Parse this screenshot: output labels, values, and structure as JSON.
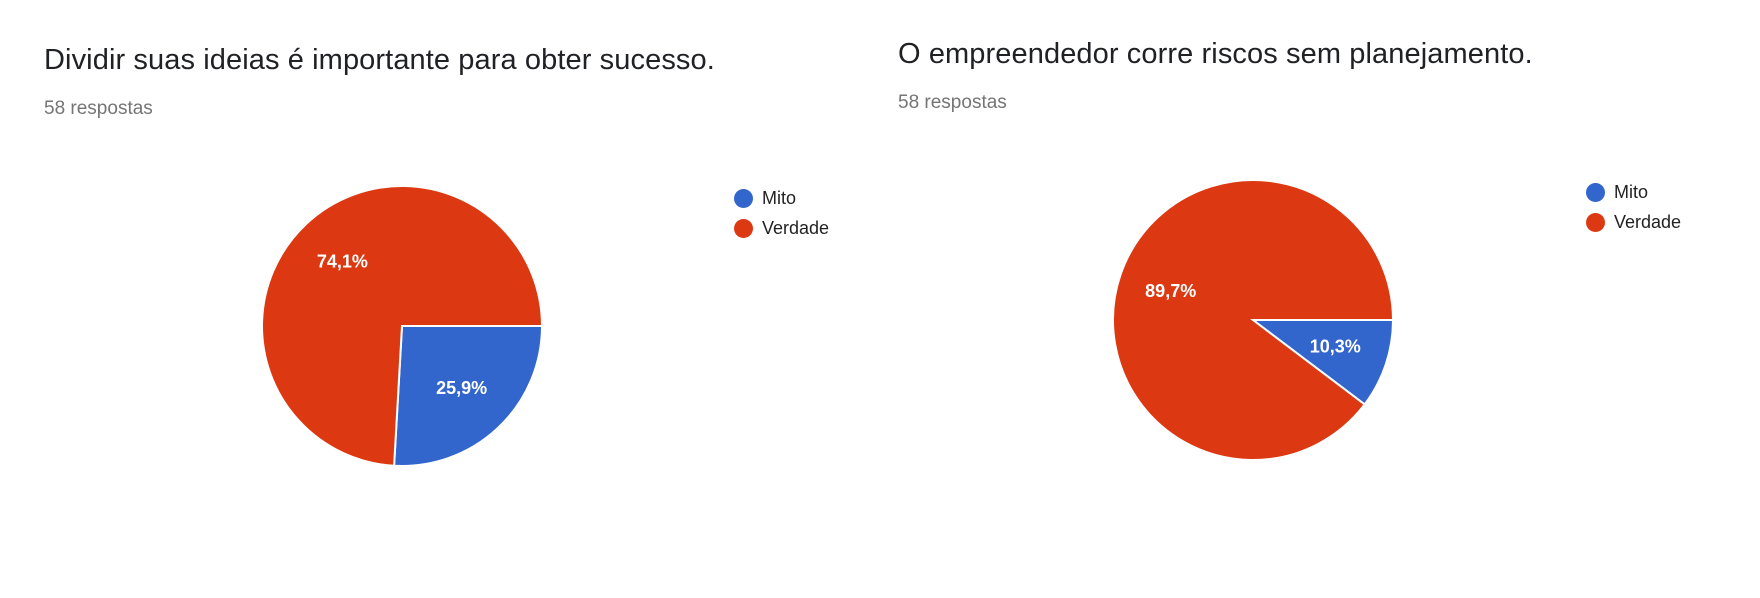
{
  "chart_data": [
    {
      "type": "pie",
      "title": "Dividir suas ideias é importante para obter sucesso.",
      "subtitle": "58 respostas",
      "legend_position": "right",
      "slices": [
        {
          "name": "Mito",
          "value": 25.9,
          "label": "25,9%",
          "color": "#3366cc"
        },
        {
          "name": "Verdade",
          "value": 74.1,
          "label": "74,1%",
          "color": "#dc3912"
        }
      ]
    },
    {
      "type": "pie",
      "title": "O empreendedor corre riscos sem planejamento.",
      "subtitle": "58 respostas",
      "legend_position": "right",
      "slices": [
        {
          "name": "Mito",
          "value": 10.3,
          "label": "10,3%",
          "color": "#3366cc"
        },
        {
          "name": "Verdade",
          "value": 89.7,
          "label": "89,7%",
          "color": "#dc3912"
        }
      ]
    }
  ]
}
